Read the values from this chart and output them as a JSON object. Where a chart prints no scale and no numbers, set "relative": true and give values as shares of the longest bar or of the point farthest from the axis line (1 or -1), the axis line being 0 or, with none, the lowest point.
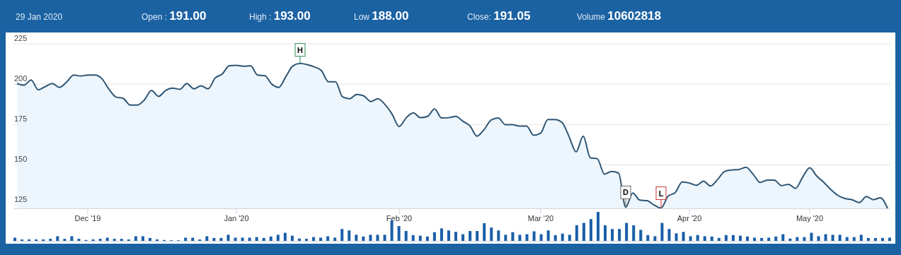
{
  "chart_data": [
    {
      "type": "area",
      "categories": [
        null,
        null,
        null,
        null,
        null,
        null,
        null,
        null,
        null,
        null,
        "Dec '19",
        null,
        null,
        null,
        null,
        null,
        null,
        null,
        null,
        null,
        null,
        null,
        null,
        null,
        null,
        null,
        null,
        null,
        null,
        null,
        null,
        "Jan '20",
        null,
        null,
        null,
        null,
        null,
        null,
        null,
        null,
        null,
        null,
        null,
        null,
        null,
        null,
        null,
        null,
        null,
        null,
        null,
        null,
        null,
        null,
        "Feb '20",
        null,
        null,
        null,
        null,
        null,
        null,
        null,
        null,
        null,
        null,
        null,
        null,
        null,
        null,
        null,
        null,
        null,
        null,
        null,
        "Mar '20",
        null,
        null,
        null,
        null,
        null,
        null,
        null,
        null,
        null,
        null,
        null,
        null,
        null,
        null,
        null,
        null,
        null,
        null,
        null,
        null,
        "Apr '20",
        null,
        null,
        null,
        null,
        null,
        null,
        null,
        null,
        null,
        null,
        null,
        null,
        null,
        null,
        null,
        null,
        "May '20",
        null,
        null,
        null,
        null,
        null,
        null,
        null,
        null,
        null,
        null,
        null
      ],
      "series": [
        {
          "color": "#2f5573",
          "values": [
            200.4,
            199.4,
            202.6,
            196.5,
            198.5,
            200.4,
            198,
            201.2,
            205.6,
            205.1,
            205.6,
            205.6,
            203.4,
            196.8,
            192,
            191.2,
            187,
            187,
            190.2,
            196.1,
            192.4,
            196.1,
            197.5,
            196.8,
            200.4,
            197.1,
            199,
            197.1,
            203.8,
            206.3,
            211.4,
            211.7,
            211.1,
            211.4,
            205.6,
            205.3,
            200,
            198,
            204.8,
            211.4,
            212.9,
            212.1,
            210.7,
            208.5,
            201.5,
            201.5,
            192.1,
            191,
            193.6,
            192.7,
            189.2,
            191,
            187.3,
            181.4,
            173.7,
            179.2,
            182.2,
            179.2,
            180,
            184.6,
            179,
            179.2,
            180,
            177,
            174.1,
            167.8,
            171.9,
            177.8,
            179,
            174.9,
            174.9,
            174,
            174,
            168.3,
            169.7,
            178.1,
            178.1,
            176.3,
            167.5,
            158,
            167.8,
            154.4,
            153.7,
            144.2,
            145.9,
            144.9,
            123.7,
            132.5,
            128.1,
            127.8,
            125.1,
            123.2,
            130.6,
            132.8,
            139.4,
            138.7,
            137.3,
            139.8,
            136.9,
            141,
            145.9,
            146.8,
            147.1,
            148.5,
            144.2,
            139.1,
            140.5,
            140.5,
            137.1,
            137.9,
            135.4,
            142.3,
            148.2,
            143,
            139.1,
            134.6,
            131,
            129.1,
            128.4,
            126.6,
            130.3,
            128.4,
            129.6,
            123
          ]
        }
      ],
      "ylim": [
        123,
        225
      ],
      "yticks": [
        125,
        150,
        175,
        200,
        225
      ],
      "grid": "y",
      "annotations": [
        "29 Jan 2020",
        "Open : 191.00",
        "High : 193.00",
        "Low 188.00",
        "Close: 191.05",
        "Volume 10602818",
        {
          "text": "H",
          "y": 212.9
        },
        {
          "text": "D",
          "y": 123.7
        },
        {
          "text": "L",
          "y": 123.2
        }
      ]
    },
    {
      "type": "bar",
      "relative": true,
      "color": "#1a5fa8",
      "categories": [
        null,
        null,
        null,
        null,
        null,
        null,
        null,
        null,
        null,
        null,
        null,
        null,
        null,
        null,
        null,
        null,
        null,
        null,
        null,
        null,
        null,
        null,
        null,
        null,
        null,
        null,
        null,
        null,
        null,
        null,
        null,
        null,
        null,
        null,
        null,
        null,
        null,
        null,
        null,
        null,
        null,
        null,
        null,
        null,
        null,
        null,
        null,
        null,
        null,
        null,
        null,
        null,
        null,
        null,
        null,
        null,
        null,
        null,
        null,
        null,
        null,
        null,
        null,
        null,
        null,
        null,
        null,
        null,
        null,
        null,
        null,
        null,
        null,
        null,
        null,
        null,
        null,
        null,
        null,
        null,
        null,
        null,
        null,
        null,
        null,
        null,
        null,
        null,
        null,
        null,
        null,
        null,
        null,
        null,
        null,
        null,
        null,
        null,
        null,
        null,
        null,
        null,
        null,
        null,
        null,
        null,
        null,
        null,
        null,
        null,
        null,
        null,
        null,
        null,
        null,
        null,
        null,
        null,
        null,
        null,
        null,
        null,
        null,
        null
      ],
      "values": [
        0.11,
        0.05,
        0.05,
        0.05,
        0.05,
        0.07,
        0.16,
        0.07,
        0.16,
        0.07,
        0.03,
        0.05,
        0.07,
        0.11,
        0.07,
        0.07,
        0.05,
        0.16,
        0.16,
        0.1,
        0.05,
        0.03,
        0.02,
        0.02,
        0.11,
        0.11,
        0.05,
        0.16,
        0.1,
        0.1,
        0.21,
        0.11,
        0.11,
        0.11,
        0.13,
        0.1,
        0.15,
        0.21,
        0.28,
        0.18,
        0.08,
        0.07,
        0.13,
        0.11,
        0.16,
        0.11,
        0.41,
        0.36,
        0.21,
        0.15,
        0.21,
        0.21,
        0.21,
        0.71,
        0.51,
        0.34,
        0.2,
        0.18,
        0.15,
        0.3,
        0.43,
        0.36,
        0.31,
        0.23,
        0.34,
        0.34,
        0.61,
        0.46,
        0.36,
        0.21,
        0.3,
        0.21,
        0.23,
        0.33,
        0.23,
        0.36,
        0.2,
        0.25,
        0.21,
        0.54,
        0.62,
        0.75,
        1,
        0.54,
        0.41,
        0.41,
        0.62,
        0.54,
        0.38,
        0.2,
        0.16,
        0.62,
        0.41,
        0.26,
        0.31,
        0.16,
        0.2,
        0.16,
        0.15,
        0.1,
        0.2,
        0.2,
        0.18,
        0.15,
        0.11,
        0.1,
        0.11,
        0.15,
        0.23,
        0.08,
        0.13,
        0.13,
        0.28,
        0.16,
        0.23,
        0.21,
        0.21,
        0.13,
        0.13,
        0.21,
        0.1,
        0.1,
        0.1,
        0.11
      ]
    }
  ]
}
